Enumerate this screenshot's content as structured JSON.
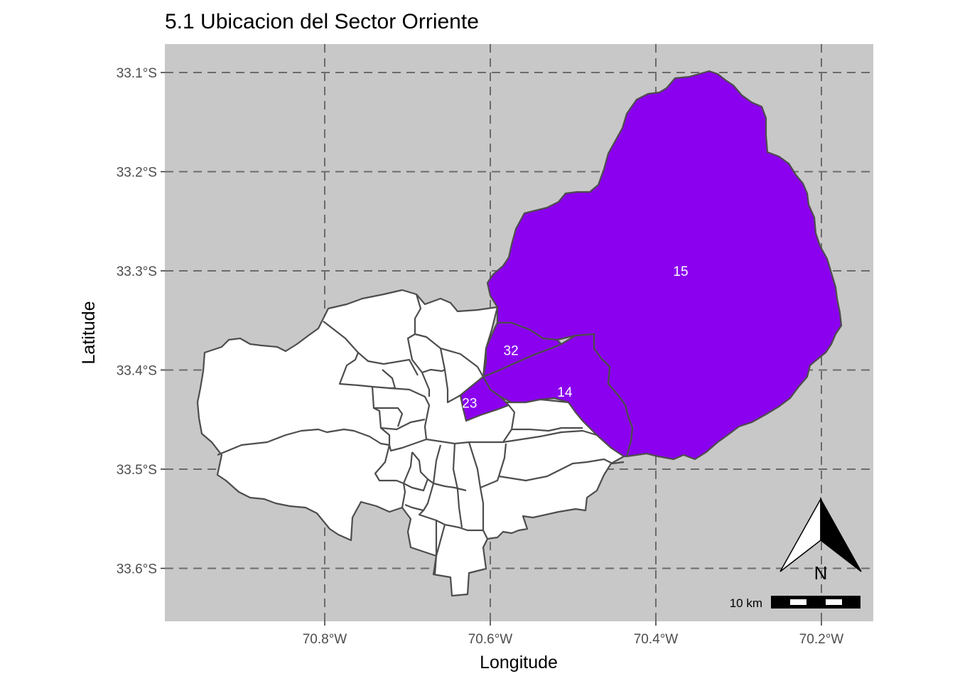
{
  "title": "5.1 Ubicacion del Sector Orriente",
  "xlabel": "Longitude",
  "ylabel": "Latitude",
  "panel_background": "#c8c8c8",
  "highlight_color": "#8b00ee",
  "base_color": "#ffffff",
  "border_color": "#4d4d4d",
  "lon_ticks": [
    {
      "value": -70.8,
      "label": "70.8°W"
    },
    {
      "value": -70.6,
      "label": "70.6°W"
    },
    {
      "value": -70.4,
      "label": "70.4°W"
    },
    {
      "value": -70.2,
      "label": "70.2°W"
    }
  ],
  "lat_ticks": [
    {
      "value": -33.1,
      "label": "33.1°S"
    },
    {
      "value": -33.2,
      "label": "33.2°S"
    },
    {
      "value": -33.3,
      "label": "33.3°S"
    },
    {
      "value": -33.4,
      "label": "33.4°S"
    },
    {
      "value": -33.5,
      "label": "33.5°S"
    },
    {
      "value": -33.6,
      "label": "33.6°S"
    }
  ],
  "highlighted_regions": [
    {
      "label": "15",
      "lon": -70.37,
      "lat": -33.3
    },
    {
      "label": "32",
      "lon": -70.575,
      "lat": -33.38
    },
    {
      "label": "14",
      "lon": -70.51,
      "lat": -33.422
    },
    {
      "label": "23",
      "lon": -70.625,
      "lat": -33.433
    }
  ],
  "north_arrow_label": "N",
  "scale_bar_label": "10 km"
}
